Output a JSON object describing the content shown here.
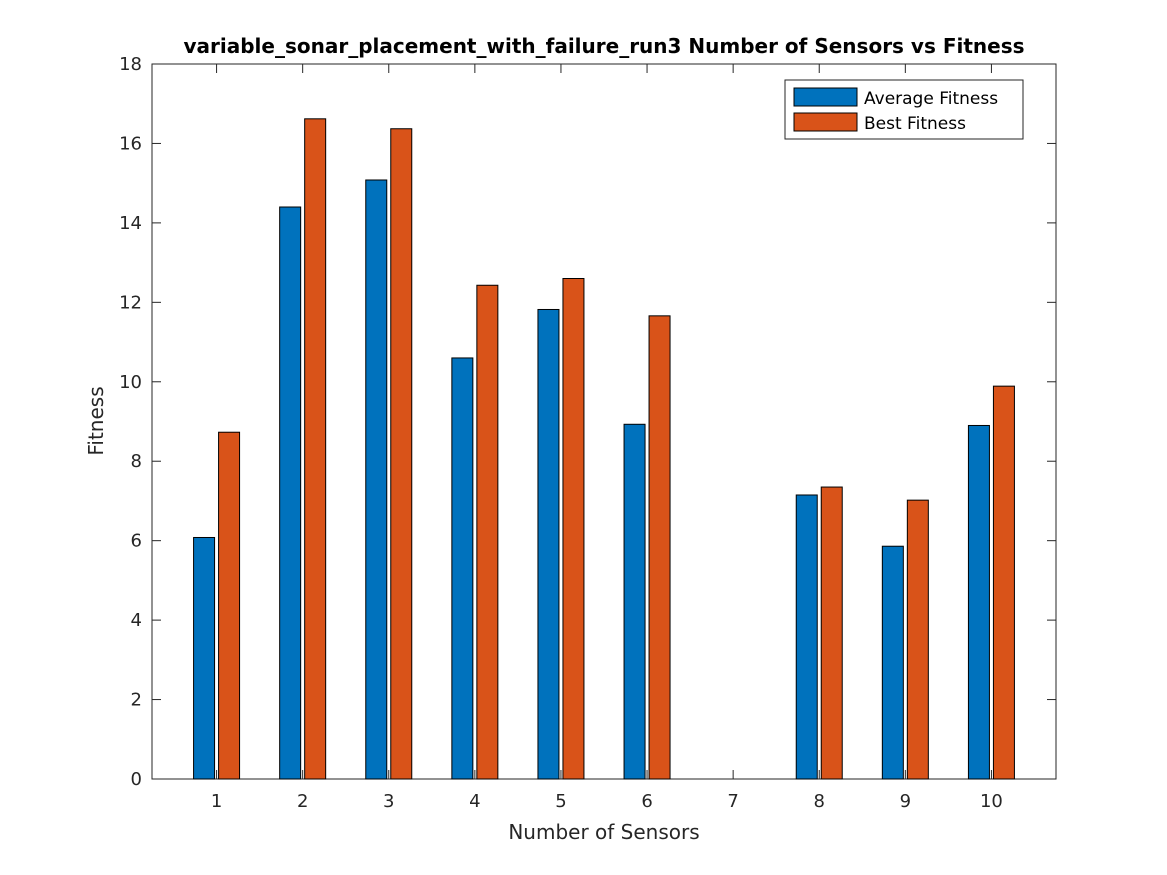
{
  "chart_data": {
    "type": "bar",
    "title": "variable_sonar_placement_with_failure_run3 Number of Sensors vs Fitness",
    "xlabel": "Number of Sensors",
    "ylabel": "Fitness",
    "ylim": [
      0,
      18
    ],
    "yticks": [
      0,
      2,
      4,
      6,
      8,
      10,
      12,
      14,
      16,
      18
    ],
    "categories": [
      "1",
      "2",
      "3",
      "4",
      "5",
      "6",
      "7",
      "8",
      "9",
      "10"
    ],
    "series": [
      {
        "name": "Average Fitness",
        "color": "#0072bd",
        "values": [
          6.08,
          14.4,
          15.08,
          10.6,
          11.82,
          8.93,
          0,
          7.15,
          5.86,
          8.9
        ]
      },
      {
        "name": "Best Fitness",
        "color": "#d95319",
        "values": [
          8.73,
          16.62,
          16.37,
          12.43,
          12.6,
          11.66,
          0,
          7.35,
          7.02,
          9.89
        ]
      }
    ],
    "legend_position": "top-right",
    "grid": false
  }
}
